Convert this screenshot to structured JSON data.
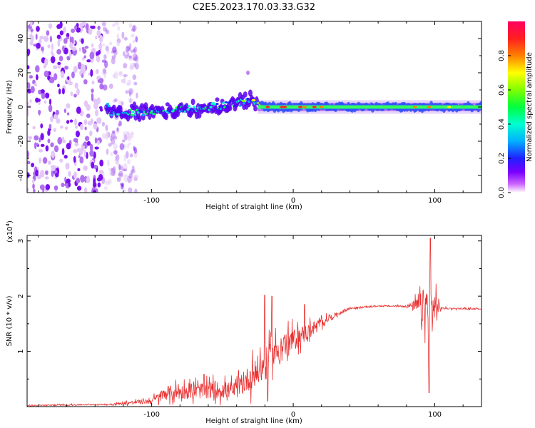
{
  "title": "C2E5.2023.170.03.33.G32",
  "colors": {
    "snr_line": "#e83030",
    "colormap": [
      "#ffffff",
      "#cc66ff",
      "#7a00ff",
      "#2020ff",
      "#00b0ff",
      "#00ffd0",
      "#00ff40",
      "#80ff00",
      "#ffff00",
      "#ff8000",
      "#ff2020",
      "#ff0060"
    ]
  },
  "chart_data": [
    {
      "type": "heatmap",
      "title": "C2E5.2023.170.03.33.G32",
      "xlabel": "Height of straight line (km)",
      "ylabel": "Frequency (Hz)",
      "xlim": [
        -188,
        133
      ],
      "ylim": [
        -50,
        50
      ],
      "x_ticks": [
        -100,
        0,
        100
      ],
      "y_ticks": [
        -40,
        -20,
        0,
        20,
        40
      ],
      "colorbar": {
        "label": "Normalized spectral amplitude",
        "range": [
          0,
          1
        ],
        "ticks": [
          0.0,
          0.2,
          0.4,
          0.6,
          0.8
        ]
      },
      "ridge": {
        "description_points": [
          {
            "x": -130,
            "freq": -4
          },
          {
            "x": -100,
            "freq": -3
          },
          {
            "x": -60,
            "freq": 0
          },
          {
            "x": -40,
            "freq": 2
          },
          {
            "x": -30,
            "freq": 5
          },
          {
            "x": -20,
            "freq": 0
          },
          {
            "x": 0,
            "freq": 0
          },
          {
            "x": 50,
            "freq": 0
          },
          {
            "x": 100,
            "freq": 0
          },
          {
            "x": 133,
            "freq": 0
          }
        ],
        "isolated_blip": {
          "x": -32,
          "freq": 20
        }
      },
      "noise_region": [
        -188,
        -120
      ]
    },
    {
      "type": "line",
      "xlabel": "Height of straight line (km)",
      "ylabel": "SNR (10 * v/v)",
      "y_multiplier_label": "(x10",
      "y_multiplier_exp": "4",
      "y_multiplier_close": ")",
      "xlim": [
        -188,
        133
      ],
      "ylim": [
        0,
        3.1
      ],
      "x_ticks": [
        -100,
        0,
        100
      ],
      "y_ticks": [
        1,
        2,
        3
      ],
      "series": [
        {
          "envelope": [
            {
              "x": -188,
              "base": 0.02,
              "amp": 0.02
            },
            {
              "x": -130,
              "base": 0.04,
              "amp": 0.02
            },
            {
              "x": -100,
              "base": 0.1,
              "amp": 0.1
            },
            {
              "x": -90,
              "base": 0.25,
              "amp": 0.25
            },
            {
              "x": -60,
              "base": 0.3,
              "amp": 0.3
            },
            {
              "x": -40,
              "base": 0.3,
              "amp": 0.3
            },
            {
              "x": -30,
              "base": 0.55,
              "amp": 0.5
            },
            {
              "x": -20,
              "base": 0.75,
              "amp": 0.6
            },
            {
              "x": -10,
              "base": 1.05,
              "amp": 0.5
            },
            {
              "x": 0,
              "base": 1.2,
              "amp": 0.4
            },
            {
              "x": 10,
              "base": 1.35,
              "amp": 0.3
            },
            {
              "x": 25,
              "base": 1.6,
              "amp": 0.1
            },
            {
              "x": 40,
              "base": 1.78,
              "amp": 0.04
            },
            {
              "x": 60,
              "base": 1.82,
              "amp": 0.02
            },
            {
              "x": 80,
              "base": 1.82,
              "amp": 0.03
            },
            {
              "x": 88,
              "base": 1.82,
              "amp": 0.3
            },
            {
              "x": 95,
              "base": 1.8,
              "amp": 0.9
            },
            {
              "x": 100,
              "base": 1.8,
              "amp": 0.7
            },
            {
              "x": 105,
              "base": 1.78,
              "amp": 0.03
            },
            {
              "x": 133,
              "base": 1.77,
              "amp": 0.02
            }
          ],
          "spikes": [
            {
              "x": -20,
              "y": 2.02
            },
            {
              "x": -18,
              "y": 0.1
            },
            {
              "x": -15,
              "y": 2.0
            },
            {
              "x": 8,
              "y": 1.85
            },
            {
              "x": 97,
              "y": 3.05
            },
            {
              "x": 96,
              "y": 0.25
            }
          ]
        }
      ]
    }
  ]
}
